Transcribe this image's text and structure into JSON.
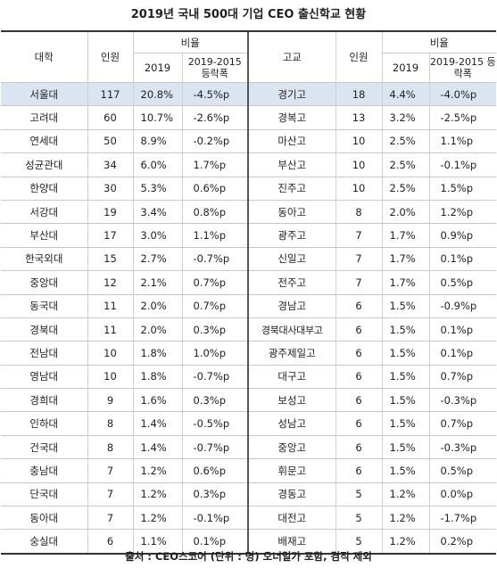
{
  "title": "2019년 국내 500대 기업 CEO 출신학교 현황",
  "headers": {
    "univ": "대학",
    "count": "인원",
    "ratio": "비율",
    "year": "2019",
    "change": "2019-2015 등락폭",
    "school": "고교"
  },
  "rows": [
    {
      "u": "서울대",
      "uc": "117",
      "up": "20.8%",
      "ud": "-4.5%p",
      "s": "경기고",
      "sc": "18",
      "sp": "4.4%",
      "sd": "-4.0%p"
    },
    {
      "u": "고려대",
      "uc": "60",
      "up": "10.7%",
      "ud": "-2.6%p",
      "s": "경복고",
      "sc": "13",
      "sp": "3.2%",
      "sd": "-2.5%p"
    },
    {
      "u": "연세대",
      "uc": "50",
      "up": "8.9%",
      "ud": "-0.2%p",
      "s": "마산고",
      "sc": "10",
      "sp": "2.5%",
      "sd": "1.1%p"
    },
    {
      "u": "성균관대",
      "uc": "34",
      "up": "6.0%",
      "ud": "1.7%p",
      "s": "부산고",
      "sc": "10",
      "sp": "2.5%",
      "sd": "-0.1%p"
    },
    {
      "u": "한양대",
      "uc": "30",
      "up": "5.3%",
      "ud": "0.6%p",
      "s": "진주고",
      "sc": "10",
      "sp": "2.5%",
      "sd": "1.5%p"
    },
    {
      "u": "서강대",
      "uc": "19",
      "up": "3.4%",
      "ud": "0.8%p",
      "s": "동아고",
      "sc": "8",
      "sp": "2.0%",
      "sd": "1.2%p"
    },
    {
      "u": "부산대",
      "uc": "17",
      "up": "3.0%",
      "ud": "1.1%p",
      "s": "광주고",
      "sc": "7",
      "sp": "1.7%",
      "sd": "0.9%p"
    },
    {
      "u": "한국외대",
      "uc": "15",
      "up": "2.7%",
      "ud": "-0.7%p",
      "s": "신일고",
      "sc": "7",
      "sp": "1.7%",
      "sd": "0.1%p"
    },
    {
      "u": "중앙대",
      "uc": "12",
      "up": "2.1%",
      "ud": "0.7%p",
      "s": "전주고",
      "sc": "7",
      "sp": "1.7%",
      "sd": "0.5%p"
    },
    {
      "u": "동국대",
      "uc": "11",
      "up": "2.0%",
      "ud": "0.7%p",
      "s": "경남고",
      "sc": "6",
      "sp": "1.5%",
      "sd": "-0.9%p"
    },
    {
      "u": "경북대",
      "uc": "11",
      "up": "2.0%",
      "ud": "0.3%p",
      "s": "경북대사대부고",
      "sc": "6",
      "sp": "1.5%",
      "sd": "0.1%p"
    },
    {
      "u": "전남대",
      "uc": "10",
      "up": "1.8%",
      "ud": "1.0%p",
      "s": "광주제일고",
      "sc": "6",
      "sp": "1.5%",
      "sd": "0.1%p"
    },
    {
      "u": "영남대",
      "uc": "10",
      "up": "1.8%",
      "ud": "-0.7%p",
      "s": "대구고",
      "sc": "6",
      "sp": "1.5%",
      "sd": "0.7%p"
    },
    {
      "u": "경희대",
      "uc": "9",
      "up": "1.6%",
      "ud": "0.3%p",
      "s": "보성고",
      "sc": "6",
      "sp": "1.5%",
      "sd": "-0.3%p"
    },
    {
      "u": "인하대",
      "uc": "8",
      "up": "1.4%",
      "ud": "-0.5%p",
      "s": "성남고",
      "sc": "6",
      "sp": "1.5%",
      "sd": "0.7%p"
    },
    {
      "u": "건국대",
      "uc": "8",
      "up": "1.4%",
      "ud": "-0.7%p",
      "s": "중앙고",
      "sc": "6",
      "sp": "1.5%",
      "sd": "-0.3%p"
    },
    {
      "u": "충남대",
      "uc": "7",
      "up": "1.2%",
      "ud": "0.6%p",
      "s": "휘문고",
      "sc": "6",
      "sp": "1.5%",
      "sd": "0.5%p"
    },
    {
      "u": "단국대",
      "uc": "7",
      "up": "1.2%",
      "ud": "0.3%p",
      "s": "경동고",
      "sc": "5",
      "sp": "1.2%",
      "sd": "0.0%p"
    },
    {
      "u": "동아대",
      "uc": "7",
      "up": "1.2%",
      "ud": "-0.1%p",
      "s": "대전고",
      "sc": "5",
      "sp": "1.2%",
      "sd": "-1.7%p"
    },
    {
      "u": "숭실대",
      "uc": "6",
      "up": "1.1%",
      "ud": "0.1%p",
      "s": "배재고",
      "sc": "5",
      "sp": "1.2%",
      "sd": "0.2%p"
    }
  ],
  "footer": "출처 : CEO스코어 (단위 : 명) 오너일가 포함, 겸직 제외"
}
